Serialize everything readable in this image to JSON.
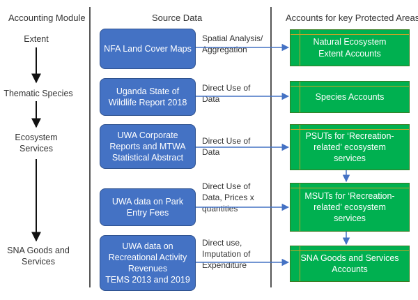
{
  "headers": {
    "module": "Accounting Module",
    "source": "Source Data",
    "accounts": "Accounts for key Protected Areas"
  },
  "modules": [
    "Extent",
    "Thematic Species",
    "Ecosystem\nServices",
    "SNA Goods and\nServices"
  ],
  "sources": [
    "NFA Land Cover Maps",
    "Uganda State of\nWildlife Report 2018",
    "UWA Corporate\nReports and MTWA\nStatistical Abstract",
    "UWA data on Park\nEntry Fees",
    "UWA data on\nRecreational Activity\nRevenues\nTEMS 2013 and 2019"
  ],
  "links": [
    "Spatial Analysis/\nAggregation",
    "Direct Use of\nData",
    "Direct Use of\nData",
    "Direct Use of\nData, Prices x\nquantities",
    "Direct use,\nImputation of\nExpenditure"
  ],
  "accounts": [
    "Natural  Ecosystem\nExtent Accounts",
    "Species Accounts",
    "PSUTs for ‘Recreation-\nrelated’ ecosystem\nservices",
    "MSUTs for ‘Recreation-\nrelated’ ecosystem\nservices",
    "SNA Goods and Services\nAccounts"
  ]
}
